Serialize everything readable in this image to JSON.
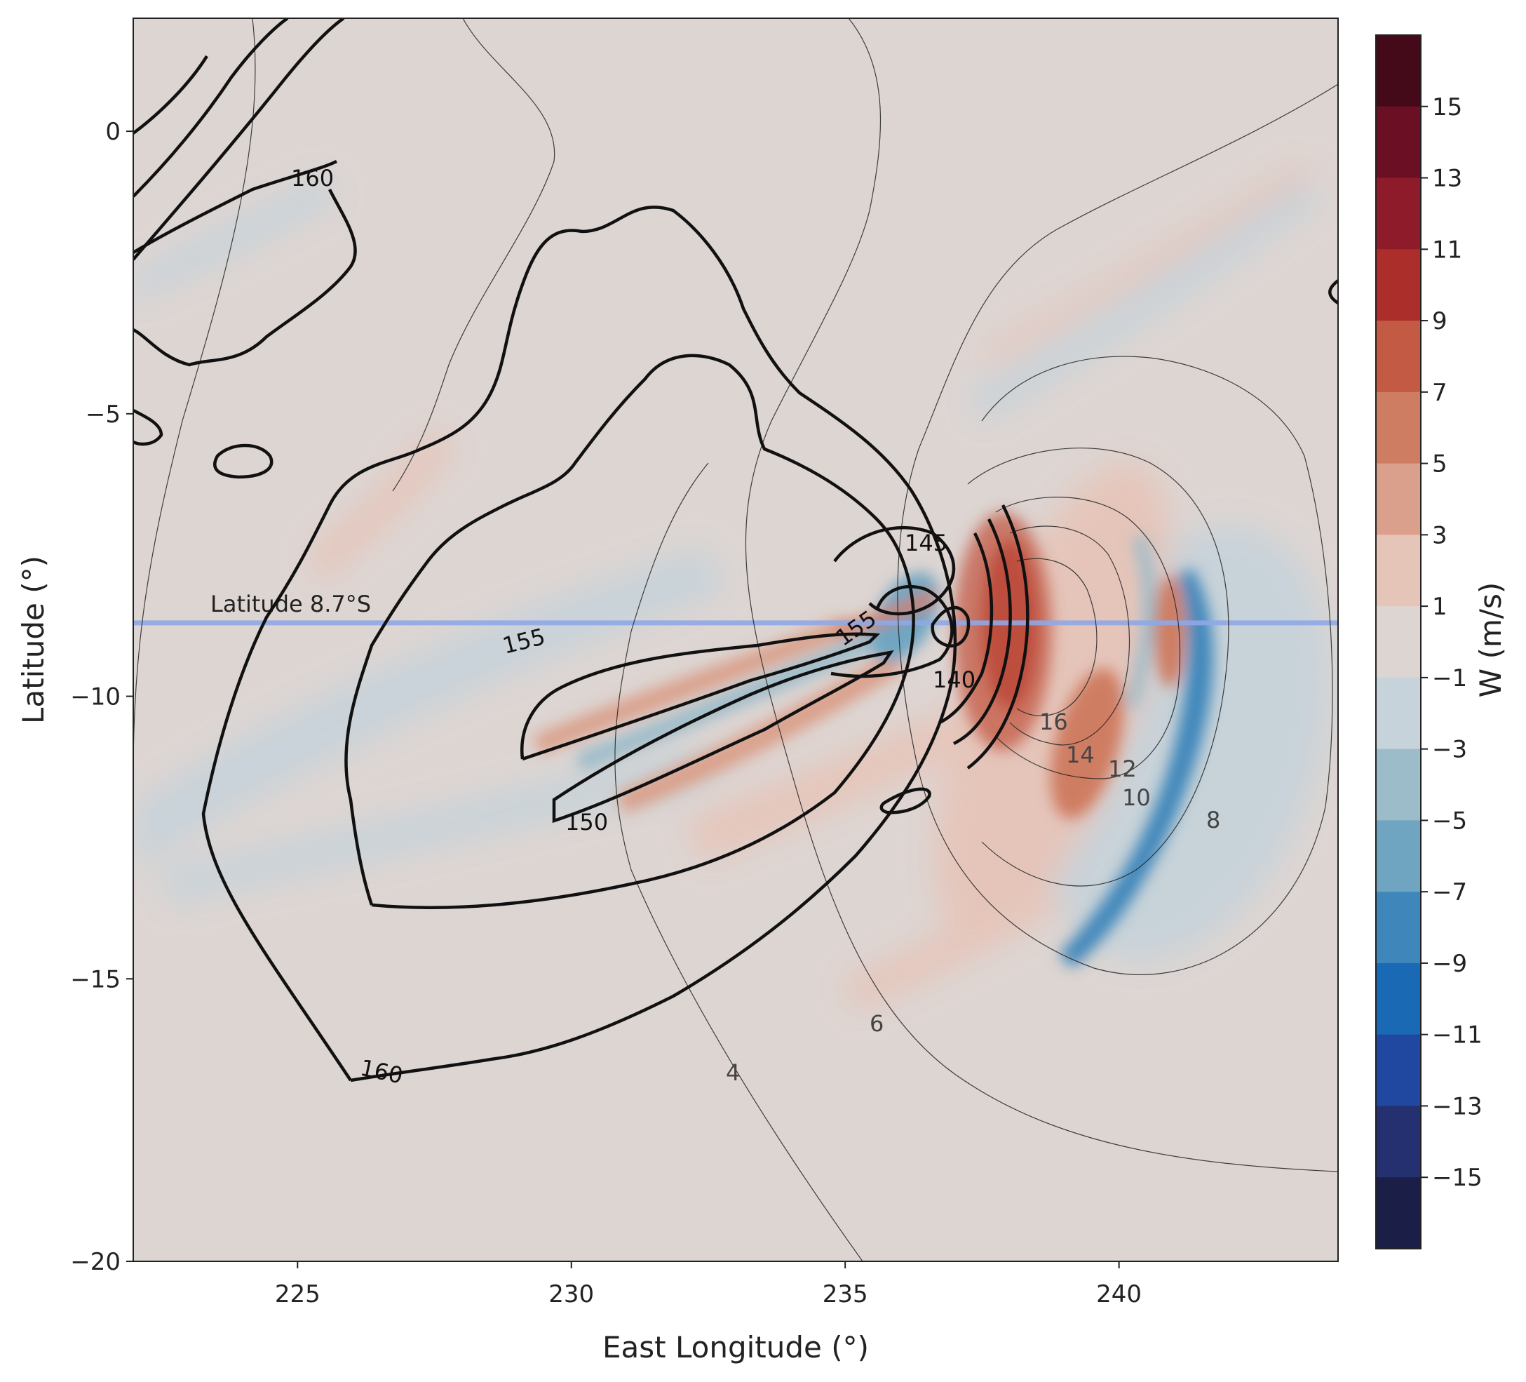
{
  "chart_data": {
    "type": "heatmap",
    "title": "",
    "xlabel": "East Longitude (°)",
    "ylabel": "Latitude (°)",
    "xlim": [
      222,
      244
    ],
    "ylim": [
      -20,
      2
    ],
    "xticks": [
      225,
      230,
      235,
      240
    ],
    "yticks": [
      0,
      -5,
      -10,
      -15,
      -20
    ],
    "xtick_labels": [
      "225",
      "230",
      "235",
      "240"
    ],
    "ytick_labels": [
      "0",
      "−5",
      "−10",
      "−15",
      "−20"
    ],
    "grid": false,
    "background_color": "#ddd5d2",
    "colorbar": {
      "label": "W (m/s)",
      "placement": "right",
      "tick_labels": [
        "15",
        "13",
        "11",
        "9",
        "7",
        "5",
        "3",
        "1",
        "−1",
        "−3",
        "−5",
        "−7",
        "−9",
        "−11",
        "−13",
        "−15"
      ],
      "tick_values": [
        15,
        13,
        11,
        9,
        7,
        5,
        3,
        1,
        -1,
        -3,
        -5,
        -7,
        -9,
        -11,
        -13,
        -15
      ],
      "levels_top_to_bottom": [
        17,
        15,
        13,
        11,
        9,
        7,
        5,
        3,
        1,
        -1,
        -3,
        -5,
        -7,
        -9,
        -11,
        -13,
        -15,
        -17
      ],
      "colors_top_to_bottom": [
        "#450a19",
        "#6b0f24",
        "#8e1b2a",
        "#ab2e2a",
        "#c35a44",
        "#cf7d62",
        "#daa08b",
        "#e6c5b9",
        "#ddd5d2",
        "#c7d3da",
        "#9cbcc9",
        "#6fa5c1",
        "#3f87bb",
        "#1a69b5",
        "#2148a0",
        "#24306f",
        "#1b1f48"
      ]
    },
    "reference_line": {
      "label": "Latitude 8.7°S",
      "latitude": -8.7,
      "color": "#8fa8e6"
    },
    "contour_sets": [
      {
        "style": "thick black",
        "levels": [
          140,
          145,
          150,
          155,
          160
        ],
        "labels": [
          "160",
          "155",
          "145",
          "155",
          "140",
          "150",
          "160"
        ]
      },
      {
        "style": "thin black",
        "levels": [
          4,
          6,
          8,
          10,
          12,
          14,
          16
        ],
        "labels": [
          "16",
          "14",
          "12",
          "10",
          "8",
          "6",
          "4"
        ]
      }
    ],
    "w_features": [
      {
        "lon": 238.0,
        "lat": -9.0,
        "w": 13
      },
      {
        "lon": 237.7,
        "lat": -9.6,
        "w": 11
      },
      {
        "lon": 239.5,
        "lat": -10.8,
        "w": 7
      },
      {
        "lon": 240.7,
        "lat": -9.0,
        "w": 5
      },
      {
        "lon": 236.0,
        "lat": -8.6,
        "w": -7
      },
      {
        "lon": 241.2,
        "lat": -10.0,
        "w": -9
      },
      {
        "lon": 240.5,
        "lat": -12.2,
        "w": -7
      },
      {
        "lon": 234.5,
        "lat": -9.7,
        "w": 5
      },
      {
        "lon": 233.0,
        "lat": -10.5,
        "w": -5
      }
    ]
  }
}
